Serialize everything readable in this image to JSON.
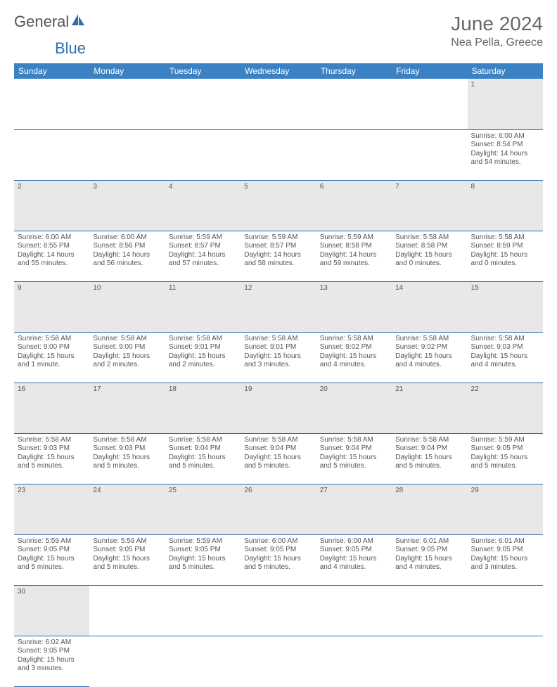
{
  "brand": {
    "part1": "General",
    "part2": "Blue",
    "logo_color": "#2a6fb0"
  },
  "title": {
    "month": "June 2024",
    "location": "Nea Pella, Greece"
  },
  "colors": {
    "header_bg": "#3b82c4",
    "header_text": "#ffffff",
    "daynum_bg": "#e8e8e8",
    "row_border": "#2a6fb0",
    "text": "#555555"
  },
  "dayNames": [
    "Sunday",
    "Monday",
    "Tuesday",
    "Wednesday",
    "Thursday",
    "Friday",
    "Saturday"
  ],
  "weeks": [
    [
      null,
      null,
      null,
      null,
      null,
      null,
      {
        "d": "1",
        "sr": "6:00 AM",
        "ss": "8:54 PM",
        "dl": "14 hours and 54 minutes."
      }
    ],
    [
      {
        "d": "2",
        "sr": "6:00 AM",
        "ss": "8:55 PM",
        "dl": "14 hours and 55 minutes."
      },
      {
        "d": "3",
        "sr": "6:00 AM",
        "ss": "8:56 PM",
        "dl": "14 hours and 56 minutes."
      },
      {
        "d": "4",
        "sr": "5:59 AM",
        "ss": "8:57 PM",
        "dl": "14 hours and 57 minutes."
      },
      {
        "d": "5",
        "sr": "5:59 AM",
        "ss": "8:57 PM",
        "dl": "14 hours and 58 minutes."
      },
      {
        "d": "6",
        "sr": "5:59 AM",
        "ss": "8:58 PM",
        "dl": "14 hours and 59 minutes."
      },
      {
        "d": "7",
        "sr": "5:58 AM",
        "ss": "8:58 PM",
        "dl": "15 hours and 0 minutes."
      },
      {
        "d": "8",
        "sr": "5:58 AM",
        "ss": "8:59 PM",
        "dl": "15 hours and 0 minutes."
      }
    ],
    [
      {
        "d": "9",
        "sr": "5:58 AM",
        "ss": "9:00 PM",
        "dl": "15 hours and 1 minute."
      },
      {
        "d": "10",
        "sr": "5:58 AM",
        "ss": "9:00 PM",
        "dl": "15 hours and 2 minutes."
      },
      {
        "d": "11",
        "sr": "5:58 AM",
        "ss": "9:01 PM",
        "dl": "15 hours and 2 minutes."
      },
      {
        "d": "12",
        "sr": "5:58 AM",
        "ss": "9:01 PM",
        "dl": "15 hours and 3 minutes."
      },
      {
        "d": "13",
        "sr": "5:58 AM",
        "ss": "9:02 PM",
        "dl": "15 hours and 4 minutes."
      },
      {
        "d": "14",
        "sr": "5:58 AM",
        "ss": "9:02 PM",
        "dl": "15 hours and 4 minutes."
      },
      {
        "d": "15",
        "sr": "5:58 AM",
        "ss": "9:03 PM",
        "dl": "15 hours and 4 minutes."
      }
    ],
    [
      {
        "d": "16",
        "sr": "5:58 AM",
        "ss": "9:03 PM",
        "dl": "15 hours and 5 minutes."
      },
      {
        "d": "17",
        "sr": "5:58 AM",
        "ss": "9:03 PM",
        "dl": "15 hours and 5 minutes."
      },
      {
        "d": "18",
        "sr": "5:58 AM",
        "ss": "9:04 PM",
        "dl": "15 hours and 5 minutes."
      },
      {
        "d": "19",
        "sr": "5:58 AM",
        "ss": "9:04 PM",
        "dl": "15 hours and 5 minutes."
      },
      {
        "d": "20",
        "sr": "5:58 AM",
        "ss": "9:04 PM",
        "dl": "15 hours and 5 minutes."
      },
      {
        "d": "21",
        "sr": "5:58 AM",
        "ss": "9:04 PM",
        "dl": "15 hours and 5 minutes."
      },
      {
        "d": "22",
        "sr": "5:59 AM",
        "ss": "9:05 PM",
        "dl": "15 hours and 5 minutes."
      }
    ],
    [
      {
        "d": "23",
        "sr": "5:59 AM",
        "ss": "9:05 PM",
        "dl": "15 hours and 5 minutes."
      },
      {
        "d": "24",
        "sr": "5:59 AM",
        "ss": "9:05 PM",
        "dl": "15 hours and 5 minutes."
      },
      {
        "d": "25",
        "sr": "5:59 AM",
        "ss": "9:05 PM",
        "dl": "15 hours and 5 minutes."
      },
      {
        "d": "26",
        "sr": "6:00 AM",
        "ss": "9:05 PM",
        "dl": "15 hours and 5 minutes."
      },
      {
        "d": "27",
        "sr": "6:00 AM",
        "ss": "9:05 PM",
        "dl": "15 hours and 4 minutes."
      },
      {
        "d": "28",
        "sr": "6:01 AM",
        "ss": "9:05 PM",
        "dl": "15 hours and 4 minutes."
      },
      {
        "d": "29",
        "sr": "6:01 AM",
        "ss": "9:05 PM",
        "dl": "15 hours and 3 minutes."
      }
    ],
    [
      {
        "d": "30",
        "sr": "6:02 AM",
        "ss": "9:05 PM",
        "dl": "15 hours and 3 minutes."
      },
      null,
      null,
      null,
      null,
      null,
      null
    ]
  ],
  "labels": {
    "sunrise": "Sunrise:",
    "sunset": "Sunset:",
    "daylight": "Daylight:"
  }
}
